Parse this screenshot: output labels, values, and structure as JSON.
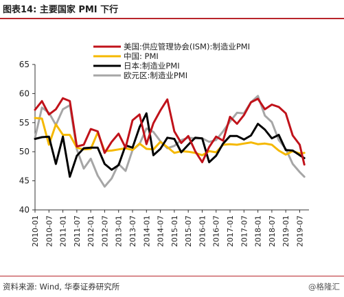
{
  "header": {
    "title": "图表14:  主要国家 PMI 下行"
  },
  "footer": {
    "source": "资料来源: Wind, 华泰证券研究所",
    "watermark": "@格隆汇"
  },
  "colors": {
    "accent": "#b8252a",
    "us": "#c0121a",
    "china": "#f5b800",
    "japan": "#000000",
    "eurozone": "#a6a6a6"
  },
  "chart_data": {
    "type": "line",
    "title": "",
    "xlabel": "",
    "ylabel": "",
    "ylim": [
      40,
      65
    ],
    "yticks": [
      40,
      45,
      50,
      55,
      60,
      65
    ],
    "grid": false,
    "legend_position": "top-right",
    "x_tick_labels": [
      "2010-01",
      "2010-07",
      "2011-01",
      "2011-07",
      "2012-01",
      "2012-07",
      "2013-01",
      "2013-07",
      "2014-01",
      "2014-07",
      "2015-01",
      "2015-07",
      "2016-01",
      "2016-07",
      "2017-01",
      "2017-07",
      "2018-01",
      "2018-07",
      "2019-01",
      "2019-07"
    ],
    "x": [
      "2010-01",
      "2010-04",
      "2010-07",
      "2010-10",
      "2011-01",
      "2011-04",
      "2011-07",
      "2011-10",
      "2012-01",
      "2012-04",
      "2012-07",
      "2012-10",
      "2013-01",
      "2013-04",
      "2013-07",
      "2013-10",
      "2014-01",
      "2014-04",
      "2014-07",
      "2014-10",
      "2015-01",
      "2015-04",
      "2015-07",
      "2015-10",
      "2016-01",
      "2016-04",
      "2016-07",
      "2016-10",
      "2017-01",
      "2017-04",
      "2017-07",
      "2017-10",
      "2018-01",
      "2018-04",
      "2018-07",
      "2018-10",
      "2019-01",
      "2019-04",
      "2019-07",
      "2019-09"
    ],
    "series": [
      {
        "name": "美国:供应管理协会(ISM):制造业PMI",
        "color": "#c0121a",
        "values": [
          57.2,
          58.7,
          56.4,
          57.3,
          59.2,
          58.7,
          50.9,
          51.2,
          53.9,
          53.5,
          49.8,
          51.7,
          53.1,
          50.7,
          55.4,
          56.4,
          51.3,
          54.9,
          57.1,
          59.0,
          53.5,
          51.5,
          52.7,
          50.1,
          48.2,
          50.8,
          52.6,
          51.9,
          56.0,
          54.8,
          56.3,
          58.5,
          59.1,
          57.3,
          58.1,
          57.7,
          56.6,
          52.8,
          51.2,
          47.8
        ]
      },
      {
        "name": "中国: PMI",
        "color": "#f5b800",
        "values": [
          55.8,
          55.7,
          51.2,
          54.7,
          52.9,
          52.9,
          50.7,
          50.4,
          50.5,
          53.3,
          50.1,
          50.2,
          50.4,
          50.6,
          50.3,
          51.4,
          50.5,
          50.4,
          51.7,
          50.8,
          49.8,
          50.1,
          50.0,
          49.8,
          49.4,
          50.1,
          49.9,
          51.2,
          51.3,
          51.2,
          51.4,
          51.6,
          51.3,
          51.4,
          51.2,
          50.2,
          49.5,
          50.1,
          49.7,
          49.8
        ]
      },
      {
        "name": "日本:制造业PMI",
        "color": "#000000",
        "values": [
          52.2,
          52.5,
          52.6,
          47.9,
          52.6,
          45.7,
          49.3,
          50.6,
          50.7,
          50.7,
          47.9,
          46.9,
          47.7,
          51.1,
          50.7,
          54.2,
          56.6,
          49.4,
          50.5,
          52.4,
          52.2,
          49.9,
          51.2,
          52.4,
          52.3,
          48.2,
          49.3,
          51.4,
          52.7,
          52.7,
          52.1,
          52.8,
          54.8,
          53.8,
          52.3,
          52.9,
          50.3,
          50.2,
          49.4,
          48.9
        ]
      },
      {
        "name": "欧元区:制造业PMI",
        "color": "#a6a6a6",
        "values": [
          52.4,
          57.6,
          56.7,
          54.6,
          57.3,
          58.0,
          50.4,
          47.1,
          48.8,
          45.9,
          44.0,
          45.4,
          47.9,
          46.7,
          50.3,
          51.3,
          54.0,
          53.4,
          51.8,
          50.6,
          51.0,
          52.0,
          52.4,
          52.3,
          52.3,
          51.7,
          52.0,
          53.5,
          55.2,
          56.7,
          56.6,
          58.5,
          59.6,
          56.2,
          55.1,
          52.0,
          50.5,
          47.9,
          46.5,
          45.7
        ]
      }
    ]
  }
}
